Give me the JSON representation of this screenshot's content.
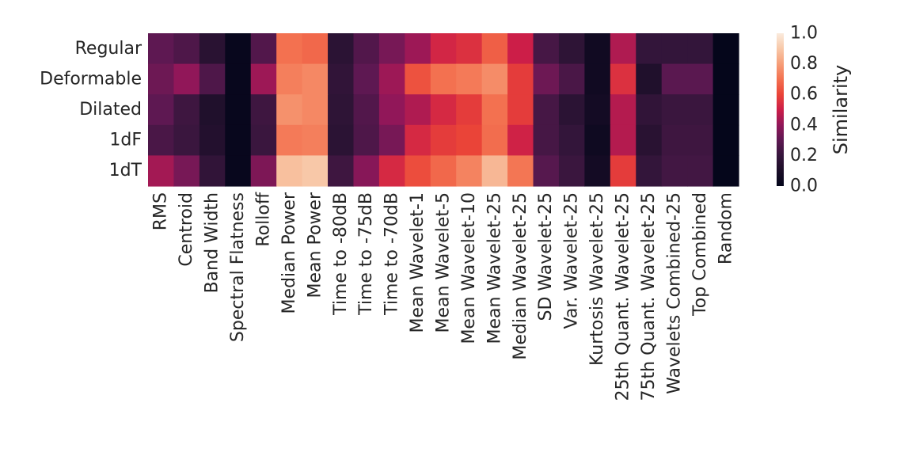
{
  "chart_data": {
    "type": "heatmap",
    "title": "",
    "xlabel": "",
    "ylabel": "",
    "rows": [
      "Regular",
      "Deformable",
      "Dilated",
      "1dF",
      "1dT"
    ],
    "columns": [
      "RMS",
      "Centroid",
      "Band Width",
      "Spectral Flatness",
      "Rolloff",
      "Median Power",
      "Mean Power",
      "Time to -80dB",
      "Time to -75dB",
      "Time to -70dB",
      "Mean Wavelet-1",
      "Mean Wavelet-5",
      "Mean Wavelet-10",
      "Mean Wavelet-25",
      "Median Wavelet-25",
      "SD Wavelet-25",
      "Var. Wavelet-25",
      "Kurtosis Wavelet-25",
      "25th Quant. Wavelet-25",
      "75th Quant. Wavelet-25",
      "Wavelets Combined-25",
      "Top Combined",
      "Random"
    ],
    "values": [
      [
        0.3,
        0.26,
        0.15,
        0.02,
        0.27,
        0.7,
        0.68,
        0.16,
        0.27,
        0.35,
        0.42,
        0.52,
        0.55,
        0.66,
        0.5,
        0.24,
        0.17,
        0.06,
        0.45,
        0.19,
        0.19,
        0.19,
        0.01
      ],
      [
        0.33,
        0.4,
        0.26,
        0.02,
        0.42,
        0.73,
        0.75,
        0.18,
        0.3,
        0.42,
        0.63,
        0.7,
        0.72,
        0.76,
        0.58,
        0.33,
        0.25,
        0.06,
        0.55,
        0.12,
        0.29,
        0.29,
        0.01
      ],
      [
        0.3,
        0.22,
        0.12,
        0.02,
        0.22,
        0.77,
        0.75,
        0.17,
        0.27,
        0.4,
        0.45,
        0.53,
        0.58,
        0.7,
        0.58,
        0.24,
        0.16,
        0.07,
        0.46,
        0.18,
        0.21,
        0.21,
        0.01
      ],
      [
        0.25,
        0.21,
        0.13,
        0.02,
        0.21,
        0.72,
        0.73,
        0.16,
        0.26,
        0.35,
        0.53,
        0.58,
        0.6,
        0.69,
        0.51,
        0.24,
        0.19,
        0.05,
        0.46,
        0.15,
        0.22,
        0.22,
        0.01
      ],
      [
        0.43,
        0.35,
        0.18,
        0.02,
        0.36,
        0.88,
        0.9,
        0.22,
        0.38,
        0.53,
        0.62,
        0.68,
        0.74,
        0.86,
        0.71,
        0.28,
        0.21,
        0.07,
        0.58,
        0.19,
        0.23,
        0.23,
        0.01
      ]
    ],
    "vmin": 0.0,
    "vmax": 1.0,
    "colormap": "rocket",
    "colorbar": {
      "label": "Similarity",
      "ticks": [
        "0.0",
        "0.2",
        "0.4",
        "0.6",
        "0.8",
        "1.0"
      ]
    },
    "grid": false,
    "legend": "none"
  }
}
